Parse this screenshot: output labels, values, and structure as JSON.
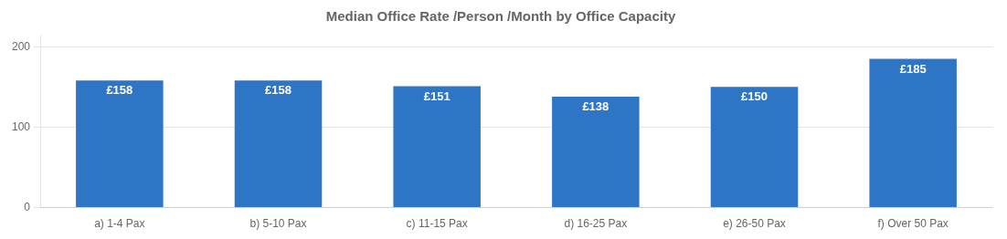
{
  "chart_data": {
    "type": "bar",
    "title": "Median Office Rate /Person /Month by Office Capacity",
    "categories": [
      "a) 1-4 Pax",
      "b) 5-10 Pax",
      "c) 11-15 Pax",
      "d) 16-25 Pax",
      "e) 26-50 Pax",
      "f) Over 50 Pax"
    ],
    "values": [
      158,
      158,
      151,
      138,
      150,
      185
    ],
    "value_labels": [
      "£158",
      "£158",
      "£151",
      "£138",
      "£150",
      "£185"
    ],
    "data_labels": true,
    "color": "#2E75C5",
    "ylim": [
      0,
      215
    ],
    "yticks": [
      0,
      100,
      200
    ],
    "grid": true
  }
}
